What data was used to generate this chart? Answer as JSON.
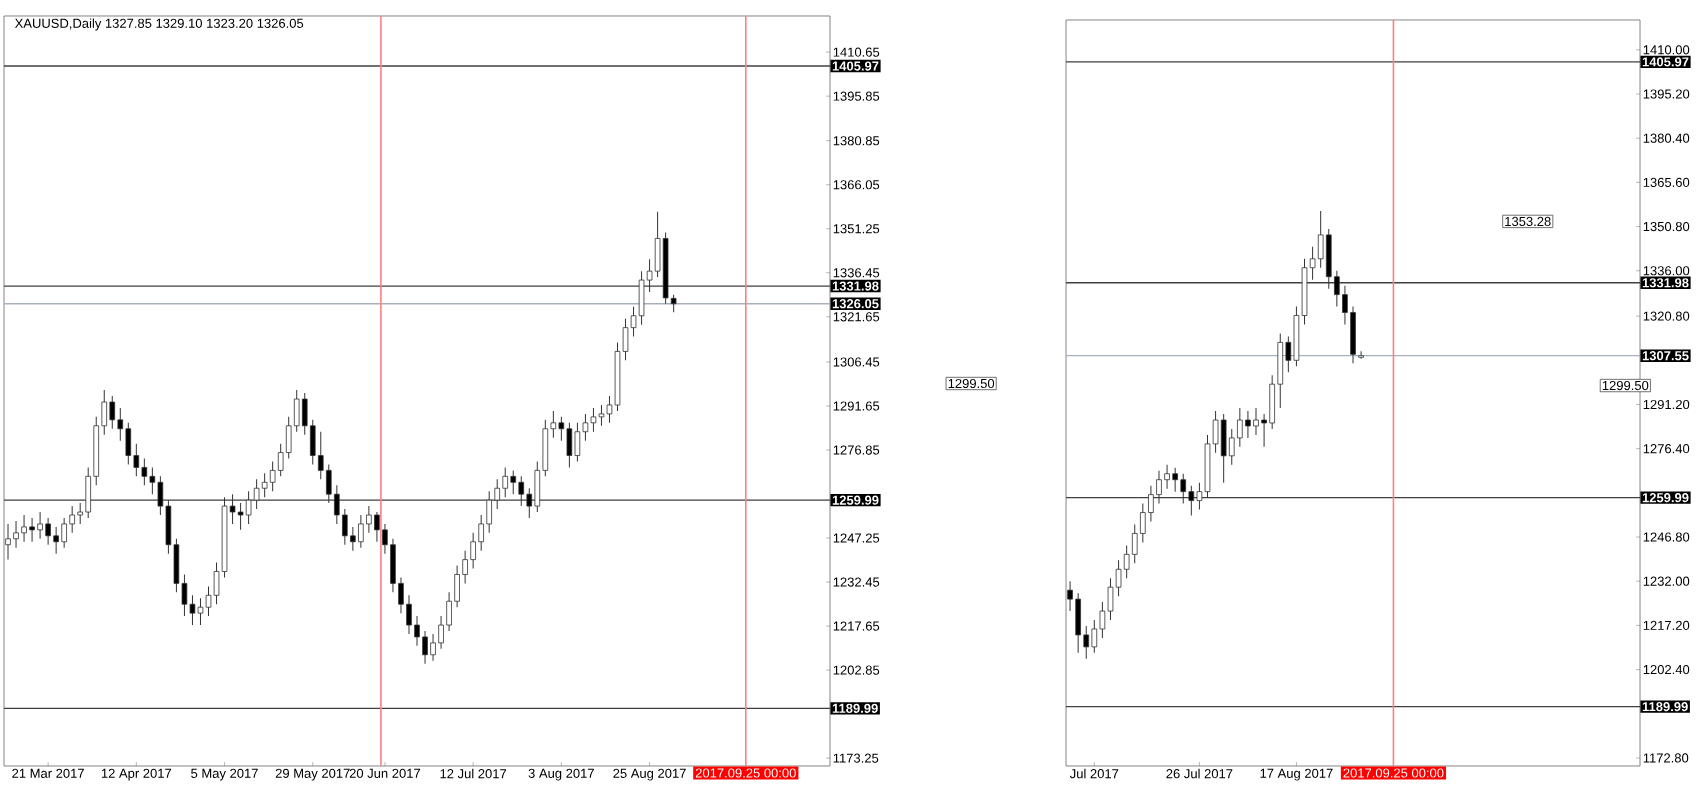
{
  "chart_data": [
    {
      "type": "candlestick",
      "title": "XAUUSD,Daily  1327.85 1329.10 1323.20 1326.05",
      "categories": [
        null,
        null,
        null,
        null,
        null,
        "21 Mar 2017",
        null,
        null,
        null,
        null,
        null,
        null,
        null,
        null,
        null,
        null,
        "12 Apr 2017",
        null,
        null,
        null,
        null,
        null,
        null,
        null,
        null,
        null,
        null,
        "5 May 2017",
        null,
        null,
        null,
        null,
        null,
        null,
        null,
        null,
        null,
        null,
        "29 May 2017",
        null,
        null,
        null,
        null,
        null,
        null,
        null,
        null,
        "20 Jun 2017",
        null,
        null,
        null,
        null,
        null,
        null,
        null,
        null,
        null,
        null,
        "12 Jul 2017",
        null,
        null,
        null,
        null,
        null,
        null,
        null,
        null,
        null,
        null,
        "3 Aug 2017",
        null,
        null,
        null,
        null,
        null,
        null,
        null,
        null,
        null,
        null,
        "25 Aug 2017",
        null,
        null,
        null,
        null,
        null,
        null,
        null,
        null,
        null,
        null,
        null,
        "2017.09.25 00:00",
        null,
        null,
        null,
        null,
        null,
        null,
        null,
        null,
        null,
        null
      ],
      "ohlc": [
        [
          1245,
          1252,
          1240,
          1247
        ],
        [
          1247,
          1253,
          1244,
          1249
        ],
        [
          1249,
          1255,
          1246,
          1251
        ],
        [
          1251,
          1254,
          1246,
          1250
        ],
        [
          1250,
          1256,
          1247,
          1252
        ],
        [
          1252,
          1254,
          1245,
          1248
        ],
        [
          1248,
          1251,
          1242,
          1246
        ],
        [
          1246,
          1254,
          1244,
          1252
        ],
        [
          1252,
          1258,
          1249,
          1255
        ],
        [
          1255,
          1259,
          1252,
          1256
        ],
        [
          1256,
          1271,
          1254,
          1268
        ],
        [
          1268,
          1288,
          1265,
          1285
        ],
        [
          1285,
          1297,
          1282,
          1293
        ],
        [
          1293,
          1295,
          1284,
          1287
        ],
        [
          1287,
          1291,
          1280,
          1284
        ],
        [
          1284,
          1286,
          1272,
          1275
        ],
        [
          1275,
          1279,
          1268,
          1271
        ],
        [
          1271,
          1274,
          1265,
          1268
        ],
        [
          1268,
          1271,
          1262,
          1266
        ],
        [
          1266,
          1268,
          1255,
          1258
        ],
        [
          1258,
          1260,
          1242,
          1245
        ],
        [
          1245,
          1247,
          1229,
          1232
        ],
        [
          1232,
          1235,
          1221,
          1225
        ],
        [
          1225,
          1228,
          1218,
          1222
        ],
        [
          1222,
          1227,
          1218,
          1224
        ],
        [
          1224,
          1231,
          1221,
          1228
        ],
        [
          1228,
          1239,
          1225,
          1236
        ],
        [
          1236,
          1261,
          1234,
          1258
        ],
        [
          1258,
          1262,
          1252,
          1256
        ],
        [
          1256,
          1259,
          1250,
          1255
        ],
        [
          1255,
          1263,
          1252,
          1260
        ],
        [
          1260,
          1267,
          1257,
          1264
        ],
        [
          1264,
          1269,
          1261,
          1266
        ],
        [
          1266,
          1273,
          1263,
          1270
        ],
        [
          1270,
          1279,
          1268,
          1276
        ],
        [
          1276,
          1288,
          1274,
          1285
        ],
        [
          1285,
          1297,
          1283,
          1294
        ],
        [
          1294,
          1296,
          1282,
          1285
        ],
        [
          1285,
          1287,
          1272,
          1275
        ],
        [
          1275,
          1283,
          1267,
          1270
        ],
        [
          1270,
          1272,
          1259,
          1262
        ],
        [
          1262,
          1265,
          1252,
          1255
        ],
        [
          1255,
          1257,
          1245,
          1248
        ],
        [
          1248,
          1251,
          1243,
          1246
        ],
        [
          1246,
          1255,
          1244,
          1252
        ],
        [
          1252,
          1258,
          1249,
          1255
        ],
        [
          1255,
          1256,
          1246,
          1250
        ],
        [
          1250,
          1252,
          1242,
          1245
        ],
        [
          1245,
          1247,
          1229,
          1232
        ],
        [
          1232,
          1234,
          1222,
          1225
        ],
        [
          1225,
          1228,
          1215,
          1218
        ],
        [
          1218,
          1221,
          1211,
          1214
        ],
        [
          1214,
          1216,
          1205,
          1208
        ],
        [
          1208,
          1215,
          1206,
          1212
        ],
        [
          1212,
          1221,
          1210,
          1218
        ],
        [
          1218,
          1229,
          1216,
          1226
        ],
        [
          1226,
          1238,
          1224,
          1235
        ],
        [
          1235,
          1243,
          1232,
          1240
        ],
        [
          1240,
          1249,
          1237,
          1246
        ],
        [
          1246,
          1255,
          1243,
          1252
        ],
        [
          1252,
          1263,
          1249,
          1260
        ],
        [
          1260,
          1267,
          1257,
          1264
        ],
        [
          1264,
          1271,
          1261,
          1268
        ],
        [
          1268,
          1270,
          1262,
          1266
        ],
        [
          1266,
          1268,
          1258,
          1262
        ],
        [
          1262,
          1264,
          1254,
          1258
        ],
        [
          1258,
          1273,
          1256,
          1270
        ],
        [
          1270,
          1287,
          1268,
          1284
        ],
        [
          1284,
          1290,
          1281,
          1286
        ],
        [
          1286,
          1288,
          1280,
          1284
        ],
        [
          1284,
          1286,
          1271,
          1275
        ],
        [
          1275,
          1286,
          1273,
          1283
        ],
        [
          1283,
          1289,
          1280,
          1286
        ],
        [
          1286,
          1291,
          1283,
          1288
        ],
        [
          1288,
          1292,
          1285,
          1289
        ],
        [
          1289,
          1295,
          1286,
          1292
        ],
        [
          1292,
          1313,
          1290,
          1310
        ],
        [
          1310,
          1321,
          1307,
          1318
        ],
        [
          1318,
          1325,
          1315,
          1322
        ],
        [
          1322,
          1337,
          1319,
          1334
        ],
        [
          1334,
          1341,
          1330,
          1337
        ],
        [
          1337,
          1357,
          1335,
          1348
        ],
        [
          1348,
          1350,
          1326,
          1328
        ],
        [
          1327.85,
          1329.1,
          1323.2,
          1326.05
        ],
        null,
        null,
        null,
        null,
        null,
        null,
        null,
        null,
        null,
        null,
        null,
        null,
        null,
        null,
        null,
        null,
        null,
        null,
        null
      ],
      "ylim": [
        1170.6,
        1422.8
      ],
      "yticks": [
        {
          "value": 1173.25,
          "label": "1173.25"
        },
        {
          "value": 1202.85,
          "label": "1202.85"
        },
        {
          "value": 1217.65,
          "label": "1217.65"
        },
        {
          "value": 1232.45,
          "label": "1232.45"
        },
        {
          "value": 1247.25,
          "label": "1247.25"
        },
        {
          "value": 1276.85,
          "label": "1276.85"
        },
        {
          "value": 1291.65,
          "label": "1291.65"
        },
        {
          "value": 1306.45,
          "label": "1306.45"
        },
        {
          "value": 1321.65,
          "label": "1321.65"
        },
        {
          "value": 1336.45,
          "label": "1336.45"
        },
        {
          "value": 1351.25,
          "label": "1351.25"
        },
        {
          "value": 1366.05,
          "label": "1366.05"
        },
        {
          "value": 1380.85,
          "label": "1380.85"
        },
        {
          "value": 1395.85,
          "label": "1395.85"
        },
        {
          "value": 1410.65,
          "label": "1410.65"
        }
      ],
      "ref_lines": [
        {
          "axis": "y",
          "value": 1405.97,
          "label": "1405.97",
          "color": "#404040"
        },
        {
          "axis": "y",
          "value": 1331.98,
          "label": "1331.98",
          "color": "#404040"
        },
        {
          "axis": "y",
          "value": 1326.05,
          "label": "1326.05",
          "color": "#a8b0c0"
        },
        {
          "axis": "y",
          "value": 1259.99,
          "label": "1259.99",
          "color": "#404040"
        },
        {
          "axis": "y",
          "value": 1189.99,
          "label": "1189.99",
          "color": "#404040"
        },
        {
          "axis": "x",
          "value": "2017.09.25 00:00",
          "color": "#ff8080"
        }
      ],
      "annotations": [
        "1299.50"
      ]
    },
    {
      "type": "candlestick",
      "categories": [
        null,
        null,
        null,
        "Jul 2017",
        null,
        null,
        null,
        null,
        null,
        null,
        null,
        null,
        null,
        null,
        null,
        null,
        "26 Jul 2017",
        null,
        null,
        null,
        null,
        null,
        null,
        null,
        null,
        null,
        null,
        null,
        "17 Aug 2017",
        null,
        null,
        null,
        null,
        null,
        null,
        null,
        null,
        null,
        null,
        null,
        "2017.09.25 00:00",
        null,
        null,
        null,
        null,
        null,
        null,
        null,
        null,
        null,
        null,
        null,
        null,
        null,
        null,
        null,
        null,
        null,
        null,
        null,
        null,
        null,
        null,
        null,
        null,
        null,
        null,
        null,
        null,
        null,
        null
      ],
      "ohlc": [
        [
          1229,
          1232,
          1222,
          1226
        ],
        [
          1226,
          1228,
          1208,
          1214
        ],
        [
          1214,
          1217,
          1206,
          1210
        ],
        [
          1210,
          1219,
          1208,
          1216
        ],
        [
          1216,
          1225,
          1213,
          1222
        ],
        [
          1222,
          1233,
          1219,
          1230
        ],
        [
          1230,
          1239,
          1227,
          1236
        ],
        [
          1236,
          1244,
          1233,
          1241
        ],
        [
          1241,
          1251,
          1238,
          1248
        ],
        [
          1248,
          1258,
          1245,
          1255
        ],
        [
          1255,
          1264,
          1252,
          1261
        ],
        [
          1261,
          1269,
          1258,
          1266
        ],
        [
          1266,
          1271,
          1263,
          1268
        ],
        [
          1268,
          1270,
          1262,
          1266
        ],
        [
          1266,
          1268,
          1258,
          1262
        ],
        [
          1262,
          1264,
          1254,
          1259
        ],
        [
          1259,
          1265,
          1256,
          1262
        ],
        [
          1262,
          1281,
          1260,
          1278
        ],
        [
          1278,
          1289,
          1275,
          1286
        ],
        [
          1286,
          1288,
          1265,
          1274
        ],
        [
          1274,
          1283,
          1271,
          1280
        ],
        [
          1280,
          1290,
          1277,
          1286
        ],
        [
          1286,
          1289,
          1280,
          1284
        ],
        [
          1284,
          1290,
          1281,
          1286
        ],
        [
          1286,
          1288,
          1277,
          1285
        ],
        [
          1285,
          1301,
          1283,
          1298
        ],
        [
          1298,
          1315,
          1290,
          1312
        ],
        [
          1312,
          1314,
          1302,
          1306
        ],
        [
          1306,
          1324,
          1304,
          1321
        ],
        [
          1321,
          1340,
          1318,
          1337
        ],
        [
          1337,
          1344,
          1333,
          1340
        ],
        [
          1340,
          1356,
          1337,
          1348
        ],
        [
          1348,
          1350,
          1330,
          1334
        ],
        [
          1334,
          1336,
          1324,
          1328
        ],
        [
          1328,
          1331,
          1318,
          1322
        ],
        [
          1322,
          1324,
          1305,
          1308
        ],
        [
          1307.0,
          1309.0,
          1306.5,
          1307.55
        ],
        null,
        null,
        null,
        null,
        null,
        null,
        null,
        null,
        null,
        null,
        null,
        null,
        null,
        null,
        null,
        null,
        null,
        null,
        null,
        null,
        null,
        null,
        null,
        null,
        null,
        null,
        null,
        null,
        null,
        null,
        null,
        null,
        null,
        null
      ],
      "ylim": [
        1170.1,
        1420.0
      ],
      "yticks": [
        {
          "value": 1172.8,
          "label": "1172.80"
        },
        {
          "value": 1202.4,
          "label": "1202.40"
        },
        {
          "value": 1217.2,
          "label": "1217.20"
        },
        {
          "value": 1232.0,
          "label": "1232.00"
        },
        {
          "value": 1246.8,
          "label": "1246.80"
        },
        {
          "value": 1276.4,
          "label": "1276.40"
        },
        {
          "value": 1291.2,
          "label": "1291.20"
        },
        {
          "value": 1320.8,
          "label": "1320.80"
        },
        {
          "value": 1336.0,
          "label": "1336.00"
        },
        {
          "value": 1350.8,
          "label": "1350.80"
        },
        {
          "value": 1365.6,
          "label": "1365.60"
        },
        {
          "value": 1380.4,
          "label": "1380.40"
        },
        {
          "value": 1395.2,
          "label": "1395.20"
        },
        {
          "value": 1410.0,
          "label": "1410.00"
        }
      ],
      "ref_lines": [
        {
          "axis": "y",
          "value": 1405.97,
          "label": "1405.97",
          "color": "#404040"
        },
        {
          "axis": "y",
          "value": 1331.98,
          "label": "1331.98",
          "color": "#404040"
        },
        {
          "axis": "y",
          "value": 1307.55,
          "label": "1307.55",
          "color": "#a8b0c0"
        },
        {
          "axis": "y",
          "value": 1259.99,
          "label": "1259.99",
          "color": "#404040"
        },
        {
          "axis": "y",
          "value": 1189.99,
          "label": "1189.99",
          "color": "#404040"
        },
        {
          "axis": "x",
          "value": "2017.09.25 00:00",
          "color": "#ff8080"
        }
      ],
      "annotations": [
        "1353.28",
        "1299.50"
      ]
    }
  ]
}
